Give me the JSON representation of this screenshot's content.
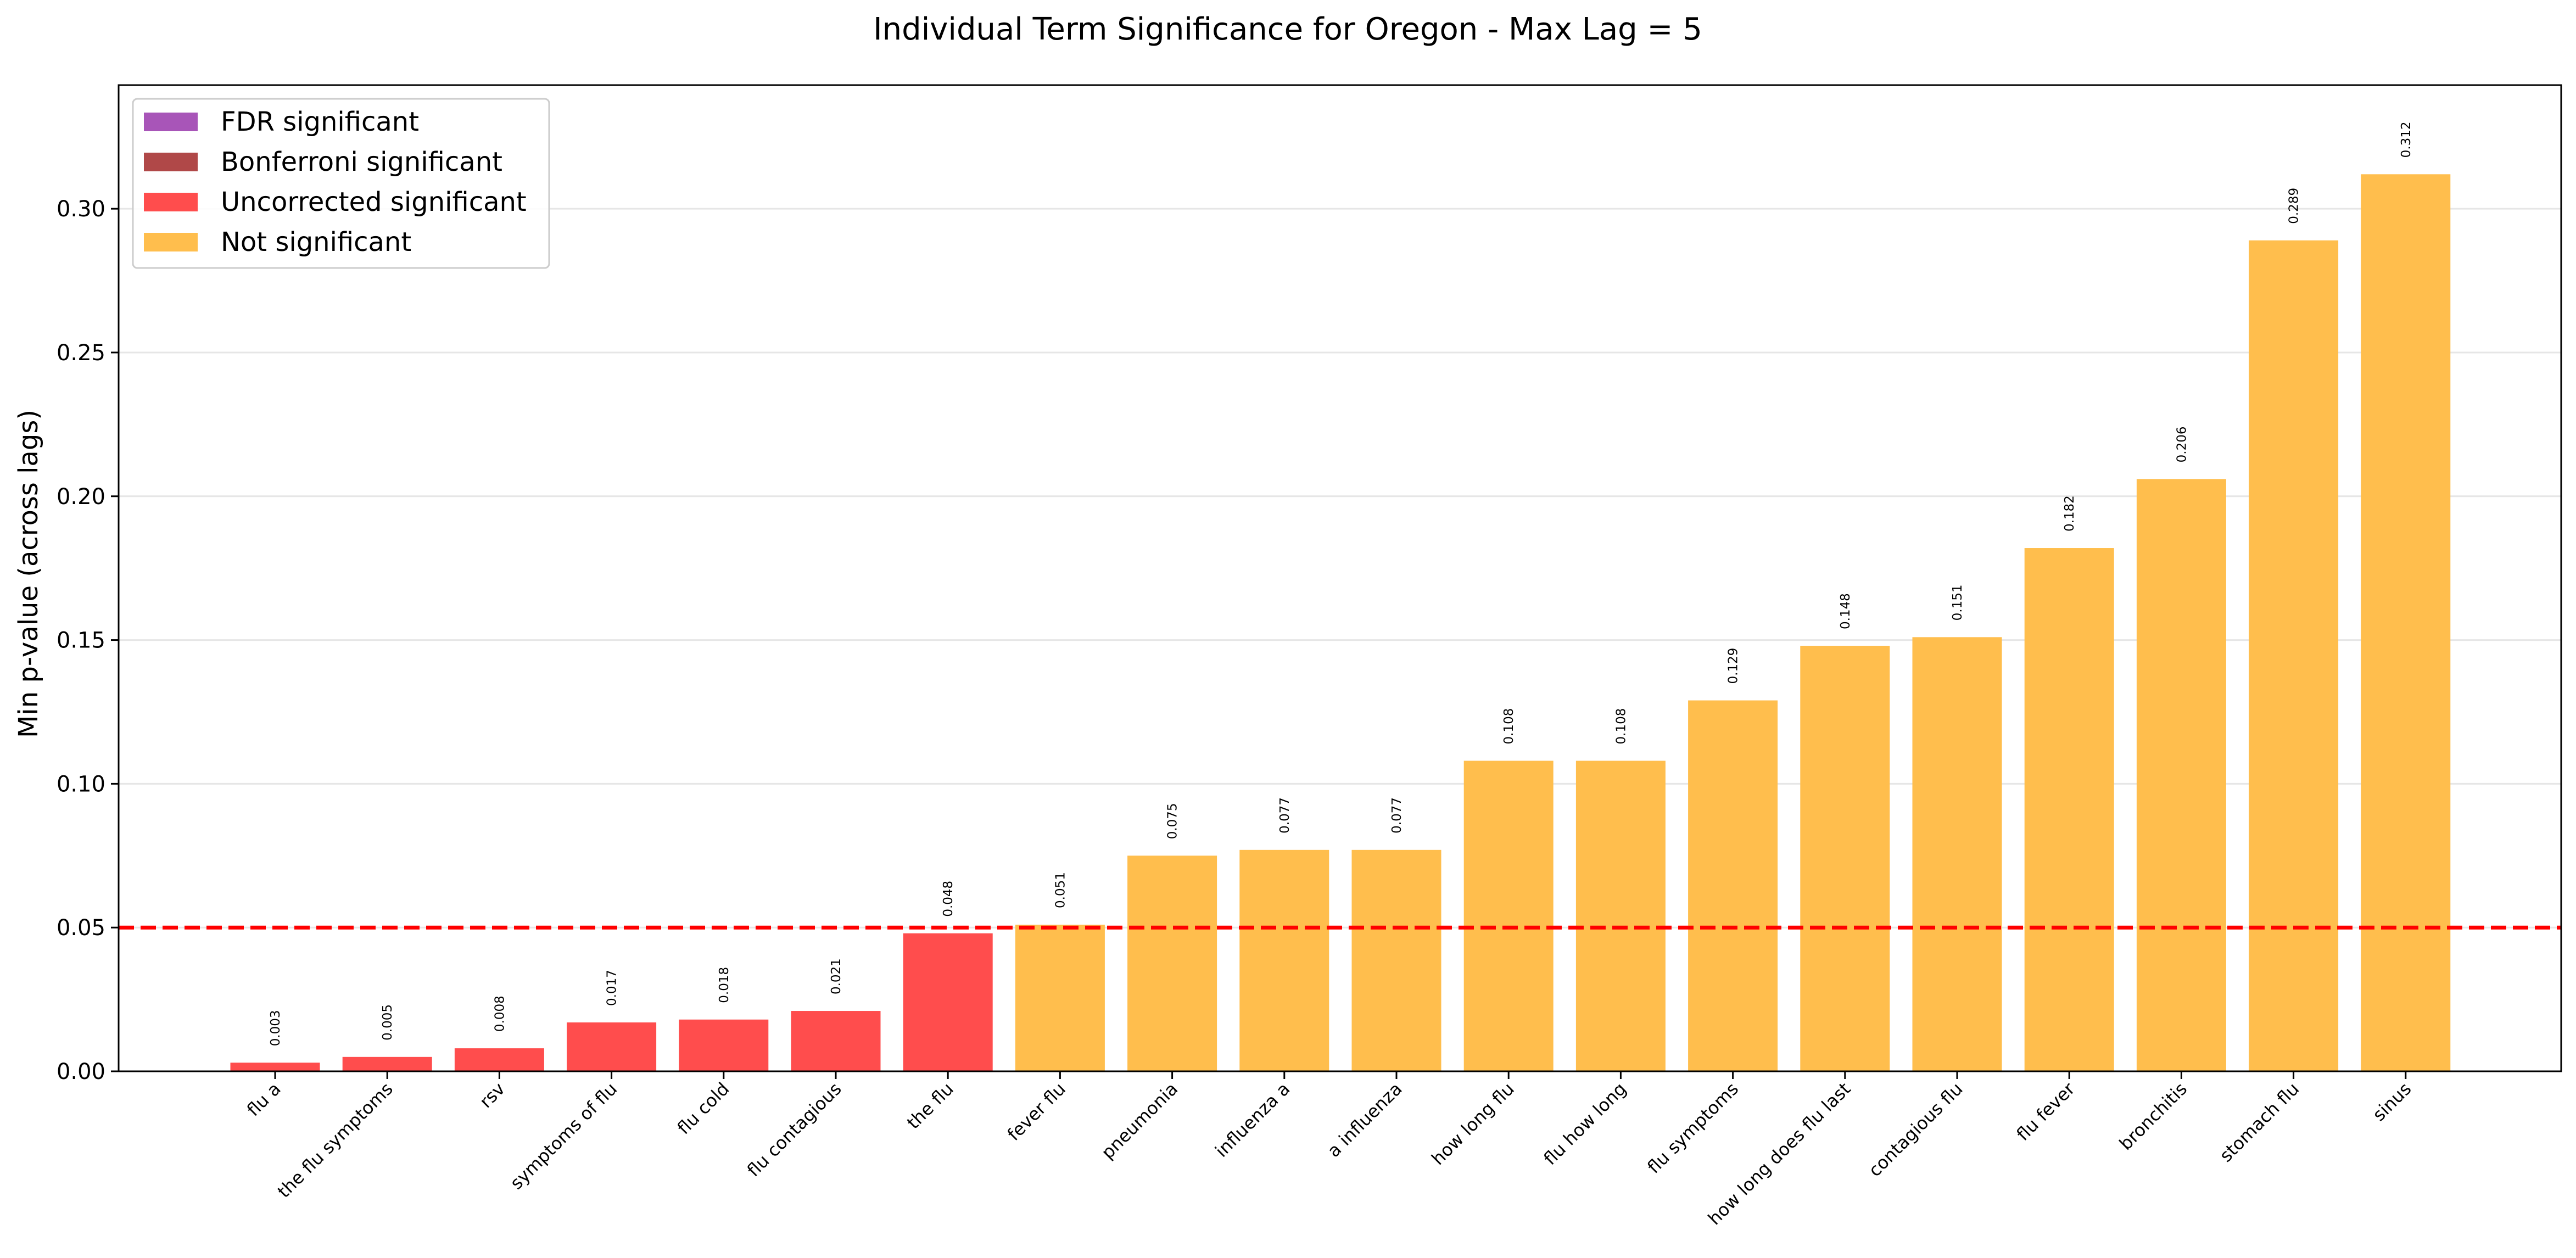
{
  "chart_data": {
    "type": "bar",
    "title": "Individual Term Significance for Oregon - Max Lag = 5",
    "xlabel": "",
    "ylabel": "Min p-value (across lags)",
    "ylim": [
      0,
      0.343
    ],
    "yticks": [
      "0.00",
      "0.05",
      "0.10",
      "0.15",
      "0.20",
      "0.25",
      "0.30"
    ],
    "grid": "horizontal",
    "legend_position": "top-left",
    "threshold_line": {
      "value": 0.05,
      "color": "#ff0000",
      "style": "dashed"
    },
    "categories": [
      "flu a",
      "the flu symptoms",
      "rsv",
      "symptoms of flu",
      "flu cold",
      "flu contagious",
      "the flu",
      "fever flu",
      "pneumonia",
      "influenza a",
      "a influenza",
      "how long flu",
      "flu how long",
      "flu symptoms",
      "how long does flu last",
      "contagious flu",
      "flu fever",
      "bronchitis",
      "stomach flu",
      "sinus"
    ],
    "values": [
      0.003,
      0.005,
      0.008,
      0.017,
      0.018,
      0.021,
      0.048,
      0.051,
      0.075,
      0.077,
      0.077,
      0.108,
      0.108,
      0.129,
      0.148,
      0.151,
      0.182,
      0.206,
      0.289,
      0.312
    ],
    "value_labels": [
      "0.003",
      "0.005",
      "0.008",
      "0.017",
      "0.018",
      "0.021",
      "0.048",
      "0.051",
      "0.075",
      "0.077",
      "0.077",
      "0.108",
      "0.108",
      "0.129",
      "0.148",
      "0.151",
      "0.182",
      "0.206",
      "0.289",
      "0.312"
    ],
    "significance": [
      "uncorrected",
      "uncorrected",
      "uncorrected",
      "uncorrected",
      "uncorrected",
      "uncorrected",
      "uncorrected",
      "not",
      "not",
      "not",
      "not",
      "not",
      "not",
      "not",
      "not",
      "not",
      "not",
      "not",
      "not",
      "not"
    ],
    "legend": [
      {
        "key": "fdr",
        "label": "FDR significant",
        "color": "#a855b8"
      },
      {
        "key": "bonferroni",
        "label": "Bonferroni significant",
        "color": "#b04848"
      },
      {
        "key": "uncorrected",
        "label": "Uncorrected significant",
        "color": "#ff4d4d"
      },
      {
        "key": "not",
        "label": "Not significant",
        "color": "#ffbe4d"
      }
    ]
  }
}
